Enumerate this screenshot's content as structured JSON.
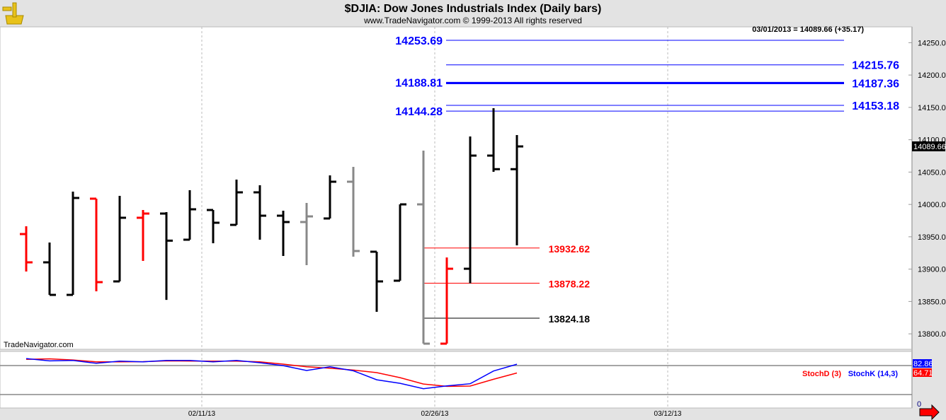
{
  "header": {
    "title": "$DJIA:  Dow Jones Industrials Index  (Daily bars)",
    "subtitle": "www.TradeNavigator.com © 1999-2013 All rights reserved",
    "logo": "sextant-logo",
    "watermark": "TradeNavigator.com"
  },
  "chart_data": [
    {
      "type": "ohlc",
      "readout": "03/01/2013 = 14089.66 (+35.17)",
      "last_price_label": "14089.66",
      "ylim": [
        13770,
        14290
      ],
      "y_ticks": [
        "14250.0",
        "14200.0",
        "14150.0",
        "14100.0",
        "14050.0",
        "14000.0",
        "13950.0",
        "13900.0",
        "13850.0",
        "13800.0"
      ],
      "y_tick_values": [
        14250,
        14200,
        14150,
        14100,
        14050,
        14000,
        13950,
        13900,
        13850,
        13800
      ],
      "grid": "vertical dashed at date ticks",
      "colors": {
        "up": "#000000",
        "down": "#ff0000",
        "neutral": "#888888",
        "level_blue": "#0000ff",
        "level_red": "#ff0000"
      },
      "bars": [
        {
          "date": "01/30/13",
          "o": 13954.2,
          "h": 13966.2,
          "l": 13896.3,
          "c": 13910.5,
          "color": "#ff0000"
        },
        {
          "date": "01/31/13",
          "o": 13910.5,
          "h": 13941.1,
          "l": 13860.2,
          "c": 13860.2,
          "color": "#000000"
        },
        {
          "date": "02/01/13",
          "o": 13860.2,
          "h": 14019.8,
          "l": 13860.2,
          "c": 14010.0,
          "color": "#000000"
        },
        {
          "date": "02/04/13",
          "o": 14008.9,
          "h": 14008.9,
          "l": 13865.7,
          "c": 13879.9,
          "color": "#ff0000"
        },
        {
          "date": "02/05/13",
          "o": 13881.0,
          "h": 14013.2,
          "l": 13881.0,
          "c": 13979.4,
          "color": "#000000"
        },
        {
          "date": "02/06/13",
          "o": 13979.4,
          "h": 13991.4,
          "l": 13912.7,
          "c": 13985.9,
          "color": "#ff0000"
        },
        {
          "date": "02/07/13",
          "o": 13985.9,
          "h": 13988.1,
          "l": 13852.5,
          "c": 13944.0,
          "color": "#000000"
        },
        {
          "date": "02/08/13",
          "o": 13945.5,
          "h": 14022.0,
          "l": 13945.5,
          "c": 13992.5,
          "color": "#000000"
        },
        {
          "date": "02/11/13",
          "o": 13991.4,
          "h": 13991.4,
          "l": 13940.0,
          "c": 13971.7,
          "color": "#000000"
        },
        {
          "date": "02/12/13",
          "o": 13968.4,
          "h": 14038.4,
          "l": 13968.4,
          "c": 14018.7,
          "color": "#000000"
        },
        {
          "date": "02/13/13",
          "o": 14018.7,
          "h": 14029.6,
          "l": 13945.5,
          "c": 13982.6,
          "color": "#000000"
        },
        {
          "date": "02/14/13",
          "o": 13982.6,
          "h": 13990.3,
          "l": 13920.3,
          "c": 13972.8,
          "color": "#000000"
        },
        {
          "date": "02/15/13",
          "o": 13972.8,
          "h": 14002.3,
          "l": 13906.1,
          "c": 13981.5,
          "color": "#888888"
        },
        {
          "date": "02/19/13",
          "o": 13978.3,
          "h": 14044.9,
          "l": 13978.3,
          "c": 14035.1,
          "color": "#000000"
        },
        {
          "date": "02/20/13",
          "o": 14035.1,
          "h": 14058.0,
          "l": 13919.2,
          "c": 13928.0,
          "color": "#888888"
        },
        {
          "date": "02/21/13",
          "o": 13926.9,
          "h": 13926.9,
          "l": 13834.0,
          "c": 13881.0,
          "color": "#000000"
        },
        {
          "date": "02/22/13",
          "o": 13882.1,
          "h": 14000.1,
          "l": 13882.1,
          "c": 14000.1,
          "color": "#000000"
        },
        {
          "date": "02/25/13",
          "o": 14000.1,
          "h": 14083.2,
          "l": 13784.8,
          "c": 13784.8,
          "color": "#888888"
        },
        {
          "date": "02/26/13",
          "o": 13784.8,
          "h": 13918.1,
          "l": 13784.8,
          "c": 13900.6,
          "color": "#ff0000"
        },
        {
          "date": "02/27/13",
          "o": 13900.6,
          "h": 14105.0,
          "l": 13878.2,
          "c": 14075.5,
          "color": "#000000"
        },
        {
          "date": "02/28/13",
          "o": 14075.5,
          "h": 14148.8,
          "l": 14050.4,
          "c": 14054.5,
          "color": "#000000"
        },
        {
          "date": "03/01/13",
          "o": 14054.5,
          "h": 14107.2,
          "l": 13936.7,
          "c": 14089.66,
          "color": "#000000"
        }
      ],
      "levels": [
        {
          "value": 14253.69,
          "label": "14253.69",
          "side": "left",
          "color": "#0000ff",
          "thick": false,
          "group": "upper"
        },
        {
          "value": 14215.76,
          "label": "14215.76",
          "side": "right",
          "color": "#0000ff",
          "thick": false,
          "group": "upper"
        },
        {
          "value": 14188.81,
          "label": "14188.81",
          "side": "left",
          "color": "#0000ff",
          "thick": false,
          "group": "upper"
        },
        {
          "value": 14187.36,
          "label": "14187.36",
          "side": "right",
          "color": "#0000ff",
          "thick": true,
          "group": "upper"
        },
        {
          "value": 14153.18,
          "label": "14153.18",
          "side": "right",
          "color": "#0000ff",
          "thick": false,
          "group": "upper"
        },
        {
          "value": 14144.28,
          "label": "14144.28",
          "side": "left",
          "color": "#0000ff",
          "thick": false,
          "group": "upper"
        },
        {
          "value": 13932.62,
          "label": "13932.62",
          "side": "right",
          "color": "#ff0000",
          "thick": false,
          "group": "lower"
        },
        {
          "value": 13878.22,
          "label": "13878.22",
          "side": "right",
          "color": "#ff0000",
          "thick": false,
          "group": "lower"
        },
        {
          "value": 13824.18,
          "label": "13824.18",
          "side": "right",
          "color": "#000000",
          "thick": false,
          "group": "lower"
        }
      ],
      "x_ticks": [
        "02/11/13",
        "02/26/13",
        "03/12/13"
      ]
    },
    {
      "type": "line",
      "ylim": [
        0,
        100
      ],
      "reference_lines": [
        80,
        20
      ],
      "zero_label": "0",
      "series": [
        {
          "name": "StochD (3)",
          "color": "#ff0000",
          "last_label": "64.71",
          "values": [
            93,
            94,
            91.7,
            87.8,
            87.8,
            88.2,
            89.7,
            89.5,
            89.2,
            89.2,
            87.8,
            83,
            77.6,
            74.6,
            70.7,
            65.4,
            55.1,
            41.9,
            37.1,
            37.6,
            51.7,
            64.71
          ]
        },
        {
          "name": "StochK (14,3)",
          "color": "#0000ff",
          "last_label": "82.86",
          "values": [
            94.6,
            89.7,
            90.7,
            84.8,
            89.2,
            87.8,
            90.7,
            90.7,
            87.8,
            90.7,
            85.9,
            80,
            69.8,
            77.6,
            69.3,
            50.7,
            43.4,
            32.2,
            38,
            42.4,
            68.8,
            82.86
          ]
        }
      ]
    }
  ],
  "controls": {
    "scroll_arrow": "right-arrow-icon"
  }
}
